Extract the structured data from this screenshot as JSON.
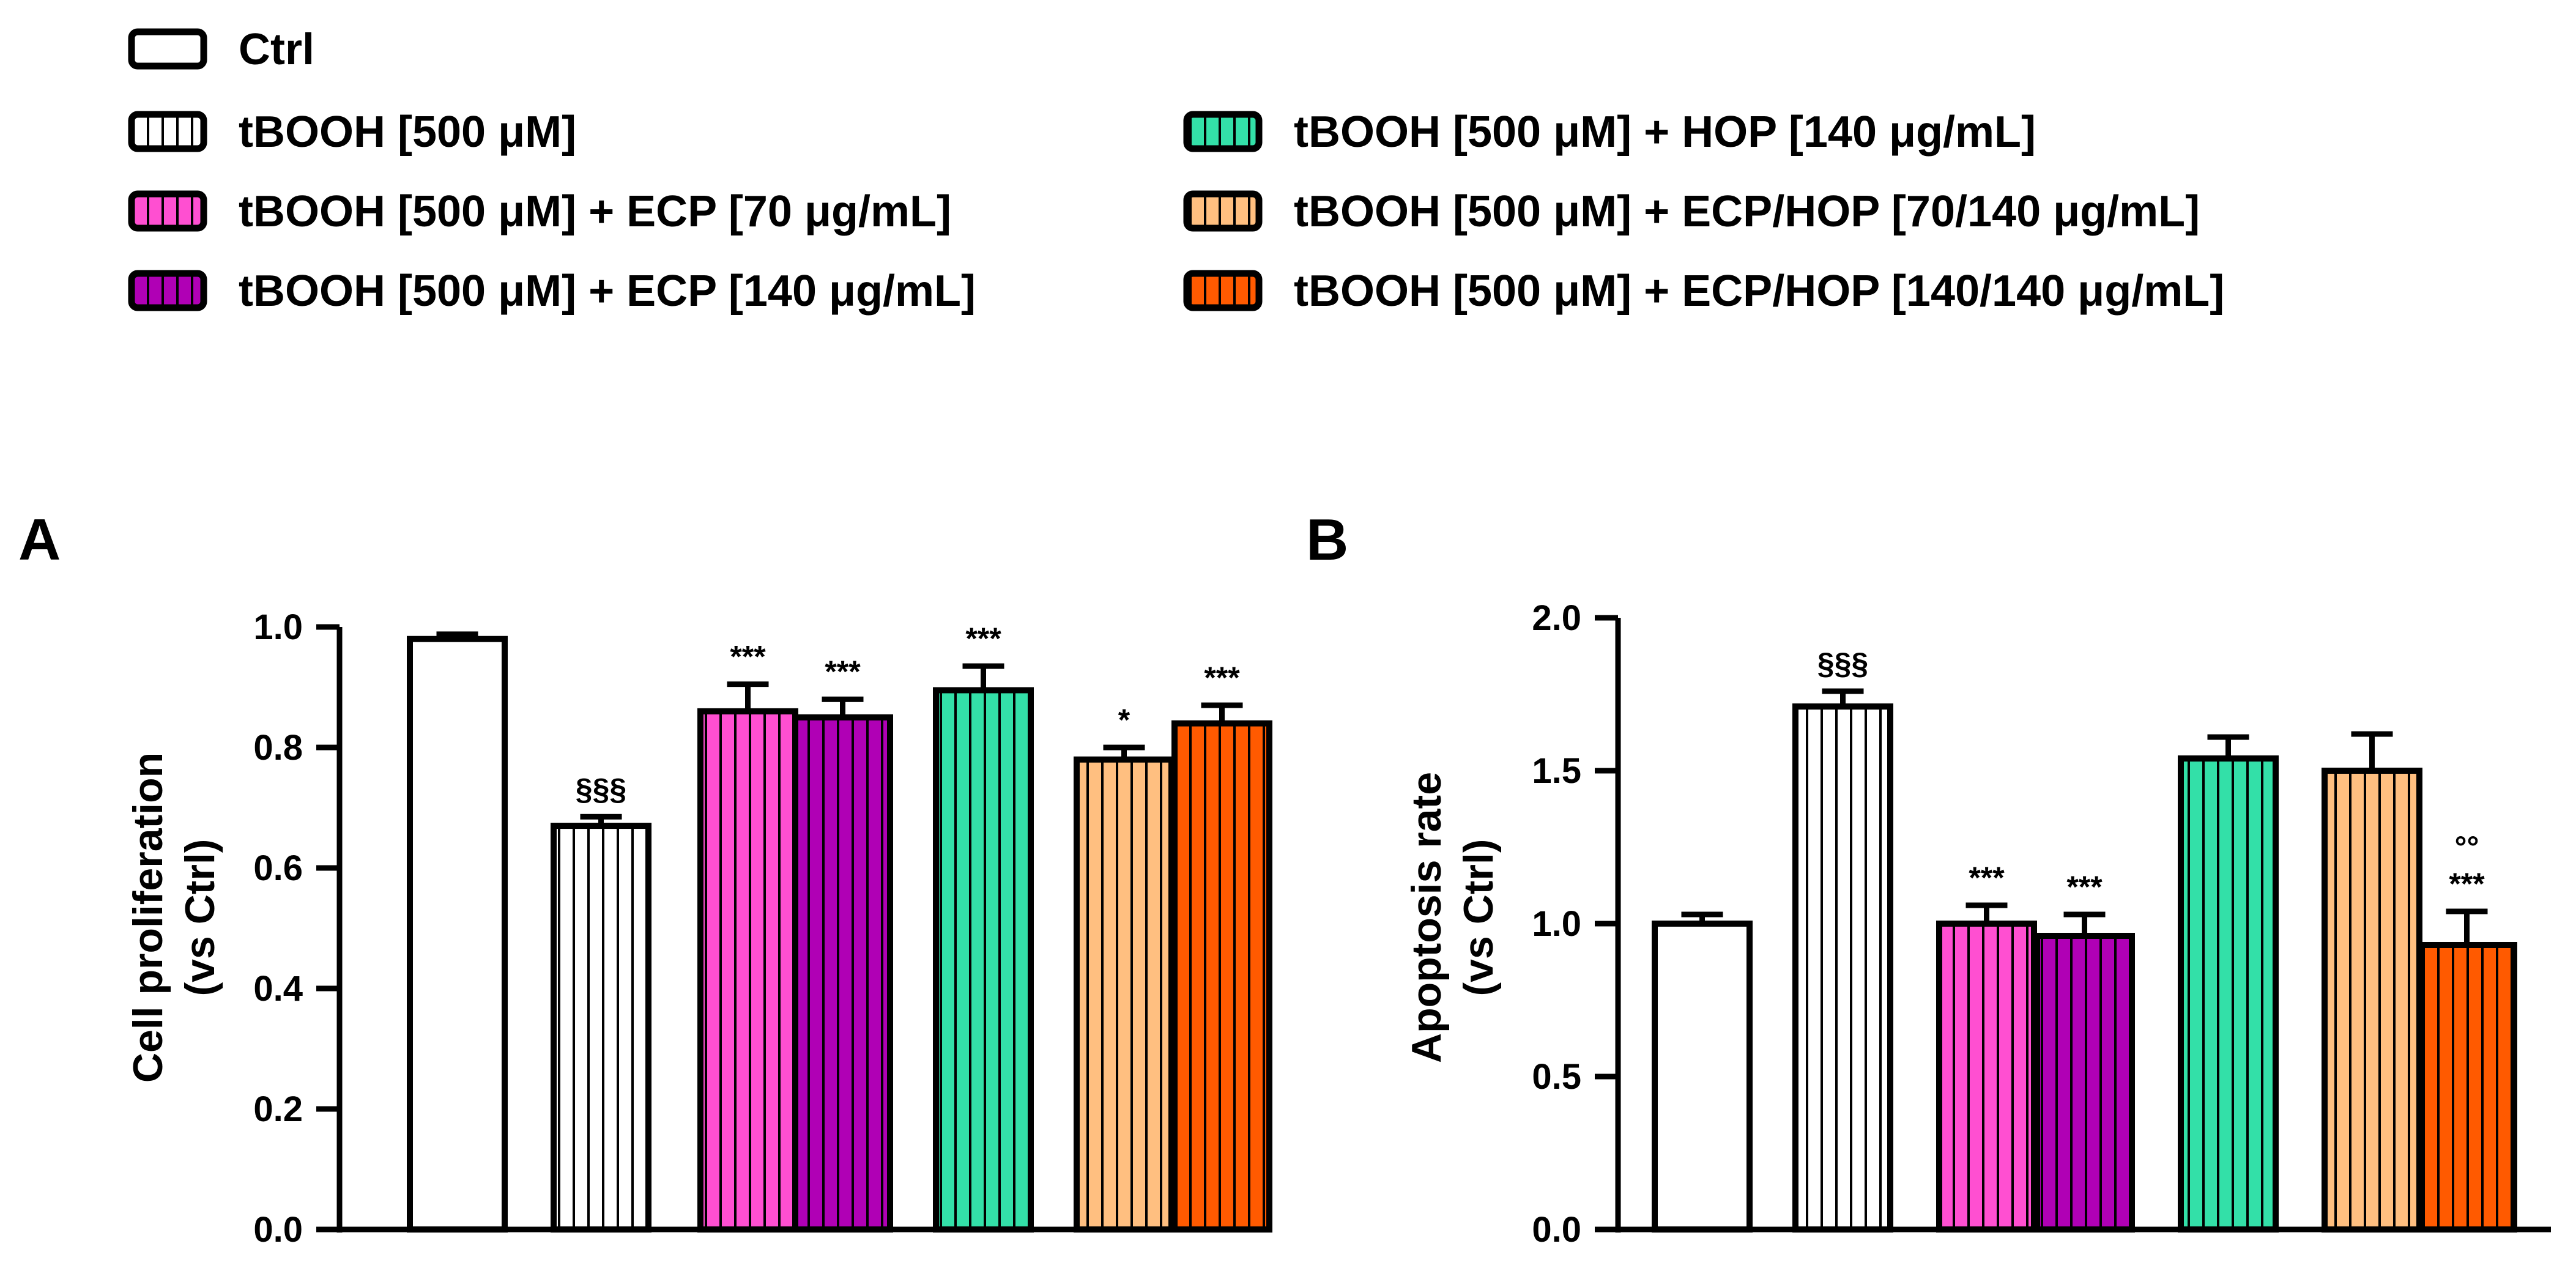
{
  "colors": {
    "ctrl": "#ffffff",
    "tbooh": "#ffffff",
    "ecp70": "#ff4fd1",
    "ecp140": "#b000b5",
    "hop140": "#33e0a8",
    "ecphop70": "#ffbf80",
    "ecphop140": "#ff5a00",
    "stroke": "#000000"
  },
  "legend": [
    {
      "key": "ctrl",
      "label": "Ctrl",
      "striped": false
    },
    {
      "key": "tbooh",
      "label": "tBOOH [500 μM]",
      "striped": true
    },
    {
      "key": "ecp70",
      "label": "tBOOH [500 μM] + ECP [70 μg/mL]",
      "striped": true
    },
    {
      "key": "ecp140",
      "label": "tBOOH [500 μM] + ECP [140 μg/mL]",
      "striped": true
    },
    {
      "key": "hop140",
      "label": "tBOOH [500 μM] + HOP [140 μg/mL]",
      "striped": true
    },
    {
      "key": "ecphop70",
      "label": "tBOOH [500 μM] + ECP/HOP [70/140 μg/mL]",
      "striped": true
    },
    {
      "key": "ecphop140",
      "label": "tBOOH [500 μM] + ECP/HOP [140/140 μg/mL]",
      "striped": true
    }
  ],
  "chart_data": [
    {
      "panel": "A",
      "type": "bar",
      "ylabel_line1": "Cell proliferation",
      "ylabel_line2": "(vs Ctrl)",
      "ylim": [
        0,
        1.0
      ],
      "yticks": [
        0.0,
        0.2,
        0.4,
        0.6,
        0.8,
        1.0
      ],
      "ytick_labels": [
        "0.0",
        "0.2",
        "0.4",
        "0.6",
        "0.8",
        "1.0"
      ],
      "bars": [
        {
          "key": "ctrl",
          "value": 0.98,
          "error": 0.008,
          "sig": ""
        },
        {
          "key": "tbooh",
          "value": 0.67,
          "error": 0.015,
          "sig": "§§§"
        },
        {
          "key": "ecp70",
          "value": 0.86,
          "error": 0.045,
          "sig": "***"
        },
        {
          "key": "ecp140",
          "value": 0.85,
          "error": 0.03,
          "sig": "***"
        },
        {
          "key": "hop140",
          "value": 0.895,
          "error": 0.04,
          "sig": "***"
        },
        {
          "key": "ecphop70",
          "value": 0.78,
          "error": 0.02,
          "sig": "*"
        },
        {
          "key": "ecphop140",
          "value": 0.84,
          "error": 0.03,
          "sig": "***"
        }
      ]
    },
    {
      "panel": "B",
      "type": "bar",
      "ylabel_line1": "Apoptosis rate",
      "ylabel_line2": "(vs Ctrl)",
      "ylim": [
        0,
        2.0
      ],
      "yticks": [
        0.0,
        0.5,
        1.0,
        1.5,
        2.0
      ],
      "ytick_labels": [
        "0.0",
        "0.5",
        "1.0",
        "1.5",
        "2.0"
      ],
      "bars": [
        {
          "key": "ctrl",
          "value": 1.0,
          "error": 0.03,
          "sig": ""
        },
        {
          "key": "tbooh",
          "value": 1.71,
          "error": 0.05,
          "sig": "§§§"
        },
        {
          "key": "ecp70",
          "value": 1.0,
          "error": 0.06,
          "sig": "***"
        },
        {
          "key": "ecp140",
          "value": 0.96,
          "error": 0.07,
          "sig": "***"
        },
        {
          "key": "hop140",
          "value": 1.54,
          "error": 0.07,
          "sig": ""
        },
        {
          "key": "ecphop70",
          "value": 1.5,
          "error": 0.12,
          "sig": ""
        },
        {
          "key": "ecphop140",
          "value": 0.93,
          "error": 0.11,
          "sig": "***",
          "sig2": "°°"
        }
      ]
    }
  ]
}
